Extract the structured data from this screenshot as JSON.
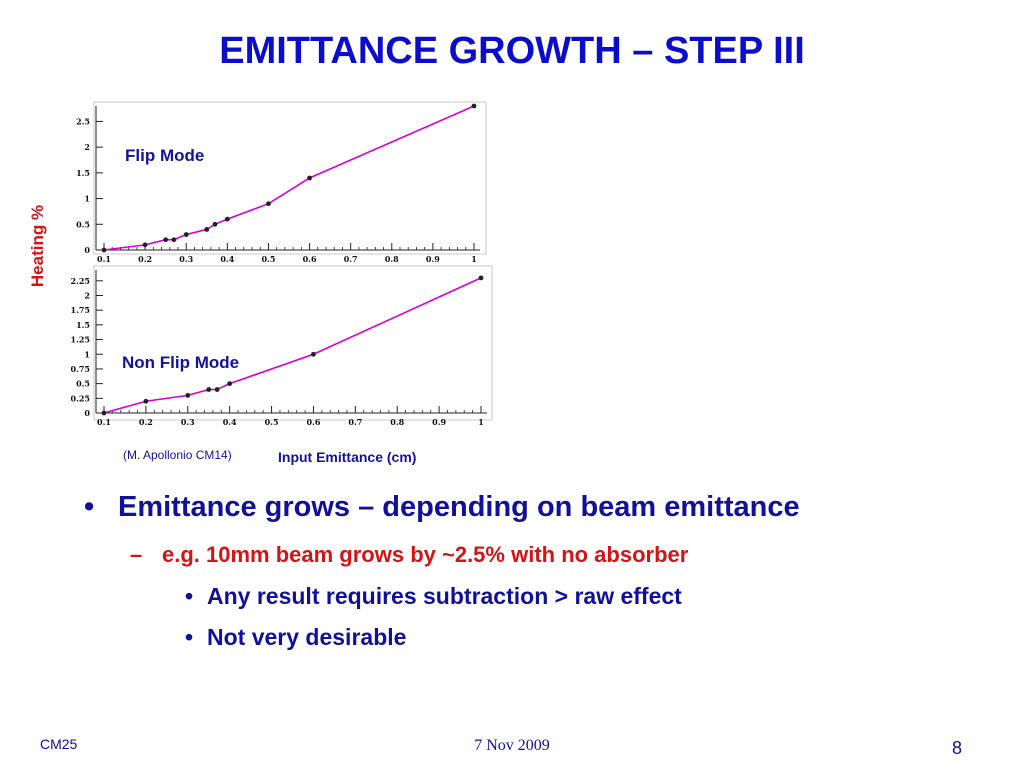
{
  "slide": {
    "title": "EMITTANCE GROWTH – STEP III",
    "bullets": [
      {
        "marker": "•",
        "text": "Emittance grows – depending on beam emittance"
      },
      {
        "marker": "–",
        "text": "e.g. 10mm beam grows by ~2.5% with no absorber"
      },
      {
        "marker": "•",
        "text": "Any result requires subtraction > raw effect"
      },
      {
        "marker": "•",
        "text": "Not very desirable"
      }
    ],
    "footer": {
      "left": "CM25",
      "date": "7 Nov 2009",
      "page": "8"
    },
    "credit": "(M. Apollonio CM14)"
  },
  "colors": {
    "title": "#0c0ccc",
    "bullet_main": "#10109a",
    "bullet_red": "#d41414",
    "series_line": "#d400d4",
    "axis_label": "#d41414"
  },
  "chart_data": [
    {
      "type": "line",
      "annotation": "Flip Mode",
      "ylabel": "Heating %",
      "xlabel": "",
      "xlim": [
        0.1,
        1.0
      ],
      "ylim": [
        0,
        2.8
      ],
      "xticks": [
        "0.1",
        "0.2",
        "0.3",
        "0.4",
        "0.5",
        "0.6",
        "0.7",
        "0.8",
        "0.9",
        "1"
      ],
      "yticks": [
        "0",
        "0.5",
        "1",
        "1.5",
        "2",
        "2.5"
      ],
      "series": [
        {
          "x": [
            0.1,
            0.2,
            0.25,
            0.27,
            0.3,
            0.35,
            0.37,
            0.4,
            0.5,
            0.6,
            1.0
          ],
          "y": [
            0.0,
            0.1,
            0.2,
            0.2,
            0.3,
            0.4,
            0.5,
            0.6,
            0.9,
            1.4,
            2.8
          ]
        }
      ]
    },
    {
      "type": "line",
      "annotation": "Non Flip Mode",
      "ylabel": "Heating %",
      "xlabel": "Input Emittance (cm)",
      "xlim": [
        0.1,
        1.0
      ],
      "ylim": [
        0,
        2.4
      ],
      "xticks": [
        "0.1",
        "0.2",
        "0.3",
        "0.4",
        "0.5",
        "0.6",
        "0.7",
        "0.8",
        "0.9",
        "1"
      ],
      "yticks": [
        "0",
        "0.25",
        "0.5",
        "0.75",
        "1",
        "1.25",
        "1.5",
        "1.75",
        "2",
        "2.25"
      ],
      "series": [
        {
          "x": [
            0.1,
            0.2,
            0.3,
            0.35,
            0.37,
            0.4,
            0.6,
            1.0
          ],
          "y": [
            0.0,
            0.2,
            0.3,
            0.4,
            0.4,
            0.5,
            1.0,
            2.3
          ]
        }
      ]
    }
  ]
}
